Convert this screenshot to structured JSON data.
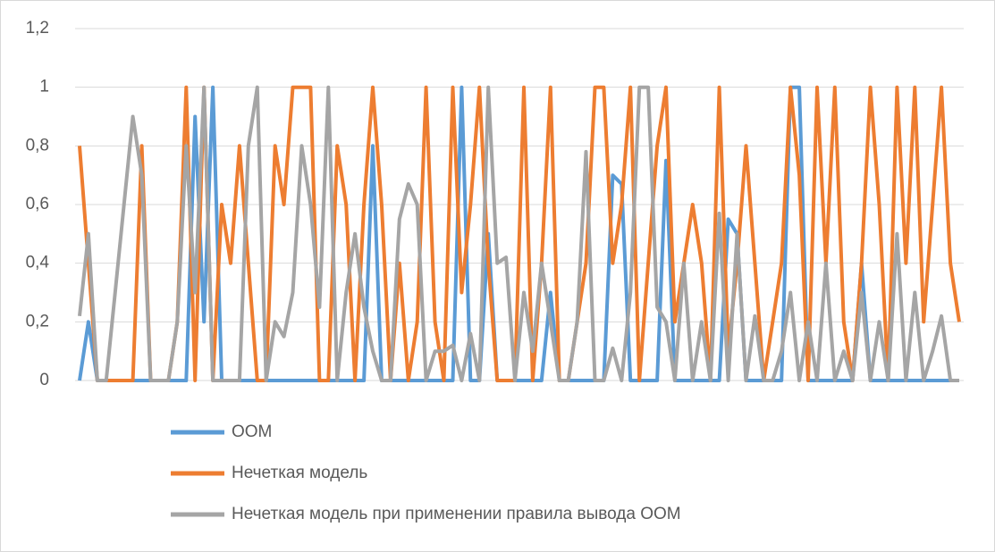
{
  "chart_data": {
    "type": "line",
    "ylim": [
      0,
      1.2
    ],
    "yticks": [
      0,
      {
        "value": 0.2,
        "label": "0,2"
      },
      {
        "value": 0.4,
        "label": "0,4"
      },
      {
        "value": 0.6,
        "label": "0,6"
      },
      {
        "value": 0.8,
        "label": "0,8"
      },
      1,
      {
        "value": 1.2,
        "label": "1,2"
      }
    ],
    "grid": true,
    "legend": "bottom",
    "series": [
      {
        "name": "ООМ",
        "color": "#5b9bd5",
        "values": [
          0,
          0.2,
          0,
          0,
          0,
          0,
          0,
          0,
          0,
          0,
          0,
          0,
          0,
          0.9,
          0.2,
          1,
          0,
          0,
          0,
          0,
          0,
          0,
          0,
          0,
          0,
          0,
          0,
          0,
          0,
          0,
          0,
          0,
          0,
          0.8,
          0,
          0,
          0,
          0,
          0,
          0,
          0,
          0,
          0,
          1,
          0,
          0,
          0.5,
          0,
          0,
          0,
          0,
          0,
          0,
          0.3,
          0,
          0,
          0,
          0,
          0,
          0,
          0.7,
          0.67,
          0,
          0,
          0,
          0,
          0.75,
          0,
          0,
          0,
          0,
          0,
          0,
          0.55,
          0.5,
          0,
          0,
          0,
          0,
          0,
          1,
          1,
          0,
          0,
          0,
          0,
          0,
          0,
          0.4,
          0,
          0,
          0,
          0,
          0,
          0,
          0,
          0,
          0,
          0,
          0
        ]
      },
      {
        "name": "Нечеткая модель",
        "color": "#ed7d31",
        "values": [
          0.8,
          0.4,
          0,
          0,
          0,
          0,
          0,
          0.8,
          0,
          0,
          0,
          0.2,
          1,
          0,
          1,
          0,
          0.6,
          0.4,
          0.8,
          0.4,
          0,
          0,
          0.8,
          0.6,
          1,
          1,
          1,
          0,
          0,
          0.8,
          0.6,
          0,
          0.6,
          1,
          0.6,
          0,
          0.4,
          0,
          0.2,
          1,
          0.2,
          0,
          1,
          0.3,
          0.6,
          1,
          0.4,
          0,
          0,
          0,
          1,
          0,
          0.4,
          1,
          0,
          0,
          0.2,
          0.4,
          1,
          1,
          0.4,
          0.6,
          1,
          0,
          0.4,
          0.8,
          1,
          0.2,
          0.4,
          0.6,
          0.4,
          0,
          1,
          0.1,
          0.4,
          0.8,
          0.4,
          0,
          0.2,
          0.4,
          1,
          0.7,
          0,
          1,
          0.4,
          1,
          0.2,
          0,
          0.4,
          1,
          0.6,
          0,
          1,
          0.4,
          1,
          0.2,
          0.6,
          1,
          0.4,
          0.2
        ]
      },
      {
        "name": "Нечеткая модель при применении правила вывода ООМ",
        "color": "#a5a5a5",
        "values": [
          0.22,
          0.5,
          0,
          0,
          0.3,
          0.6,
          0.9,
          0.7,
          0,
          0,
          0,
          0.2,
          0.8,
          0.3,
          1,
          0,
          0,
          0,
          0,
          0.8,
          1,
          0,
          0.2,
          0.15,
          0.3,
          0.8,
          0.6,
          0.25,
          1,
          0,
          0.3,
          0.5,
          0.25,
          0.1,
          0,
          0,
          0.55,
          0.67,
          0.6,
          0,
          0.1,
          0.1,
          0.12,
          0,
          0.16,
          0,
          1,
          0.4,
          0.42,
          0,
          0.3,
          0.1,
          0.4,
          0.2,
          0,
          0,
          0.2,
          0.78,
          0,
          0,
          0.11,
          0,
          0.3,
          1,
          1,
          0.25,
          0.2,
          0,
          0.4,
          0,
          0.2,
          0,
          0.57,
          0,
          0.5,
          0,
          0.22,
          0,
          0,
          0.1,
          0.3,
          0,
          0.2,
          0,
          0.4,
          0,
          0.1,
          0,
          0.3,
          0,
          0.2,
          0,
          0.5,
          0,
          0.3,
          0,
          0.1,
          0.22,
          0,
          0
        ]
      }
    ]
  }
}
